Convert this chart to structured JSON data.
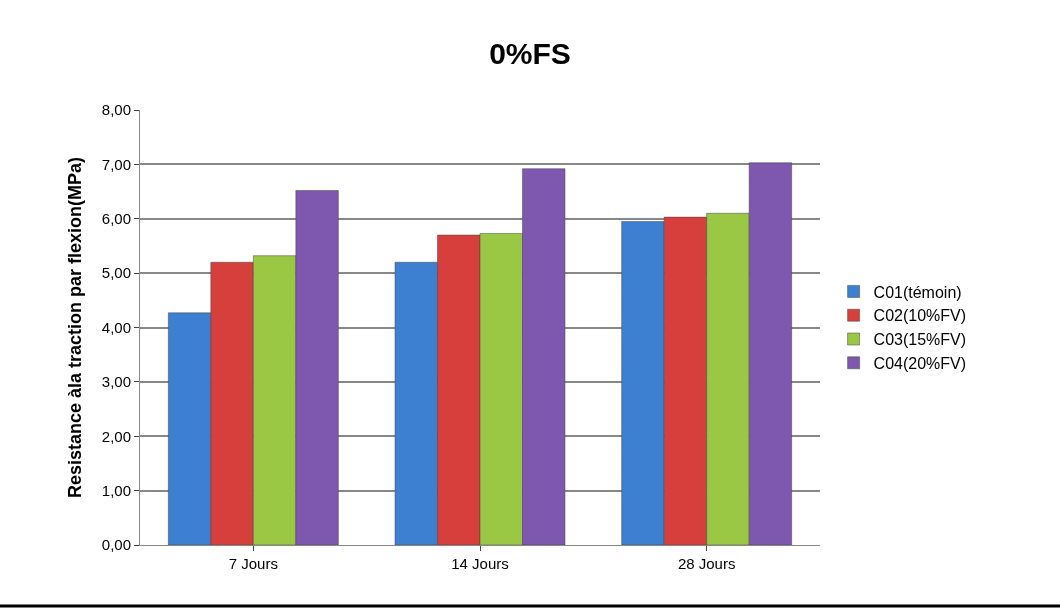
{
  "chart_data": {
    "type": "bar",
    "title": "0%FS",
    "ylabel": "Resistance àla traction par flexion(MPa)",
    "categories": [
      "7 Jours",
      "14 Jours",
      "28 Jours"
    ],
    "series": [
      {
        "name": "C01(témoin)",
        "color": "#3d7fd0",
        "values": [
          4.27,
          5.2,
          5.95
        ]
      },
      {
        "name": "C02(10%FV)",
        "color": "#d63f3c",
        "values": [
          5.2,
          5.7,
          6.03
        ]
      },
      {
        "name": "C03(15%FV)",
        "color": "#9ac844",
        "values": [
          5.32,
          5.73,
          6.1
        ]
      },
      {
        "name": "C04(20%FV)",
        "color": "#7e57ae",
        "values": [
          6.52,
          6.92,
          7.03
        ]
      }
    ],
    "ylim": [
      0,
      8
    ],
    "yticks": [
      {
        "value": 0,
        "label": "0,00"
      },
      {
        "value": 1,
        "label": "1,00"
      },
      {
        "value": 2,
        "label": "2,00"
      },
      {
        "value": 3,
        "label": "3,00"
      },
      {
        "value": 4,
        "label": "4,00"
      },
      {
        "value": 5,
        "label": "5,00"
      },
      {
        "value": 6,
        "label": "6,00"
      },
      {
        "value": 7,
        "label": "7,00"
      },
      {
        "value": 8,
        "label": "8,00"
      }
    ],
    "grid": "y",
    "legend": "right"
  }
}
